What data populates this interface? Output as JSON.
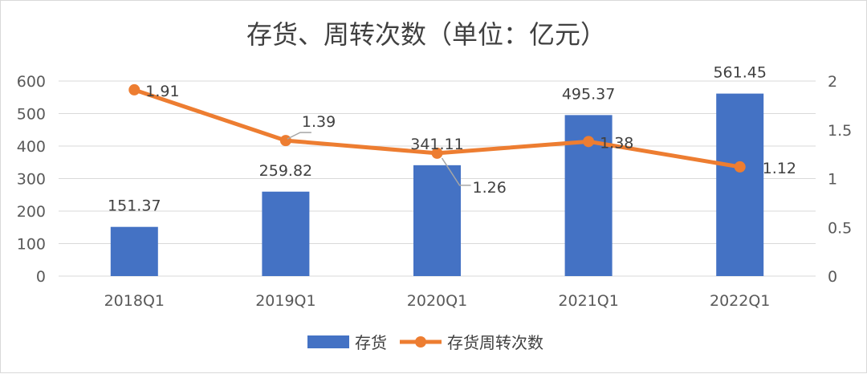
{
  "chart_data": {
    "type": "bar",
    "title": "存货、周转次数（单位：亿元）",
    "categories": [
      "2018Q1",
      "2019Q1",
      "2020Q1",
      "2021Q1",
      "2022Q1"
    ],
    "series": [
      {
        "name": "存货",
        "type": "bar",
        "axis": "left",
        "values": [
          151.37,
          259.82,
          341.11,
          495.37,
          561.45
        ],
        "color": "#4472C4"
      },
      {
        "name": "存货周转次数",
        "type": "line",
        "axis": "right",
        "values": [
          1.91,
          1.39,
          1.26,
          1.38,
          1.12
        ],
        "color": "#ED7D31"
      }
    ],
    "bar_labels": [
      "151.37",
      "259.82",
      "341.11",
      "495.37",
      "561.45"
    ],
    "line_labels": [
      "1.91",
      "1.39",
      "1.26",
      "1.38",
      "1.12"
    ],
    "y_left": {
      "ylim": [
        0,
        600
      ],
      "ticks": [
        "0",
        "100",
        "200",
        "300",
        "400",
        "500",
        "600"
      ]
    },
    "y_right": {
      "ylim": [
        0,
        2
      ],
      "ticks": [
        "0",
        "0.5",
        "1",
        "1.5",
        "2"
      ]
    },
    "grid": true,
    "legend_position": "bottom"
  }
}
